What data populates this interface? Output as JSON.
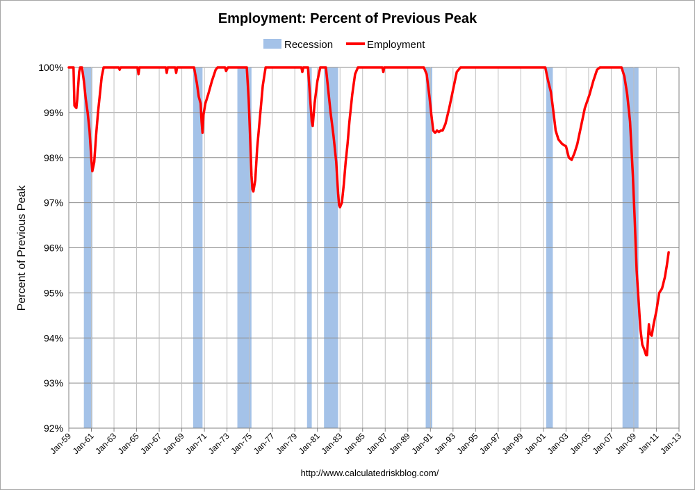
{
  "chart_data": {
    "type": "line",
    "title": "Employment: Percent of Previous Peak",
    "ylabel": "Percent of Previous Peak",
    "xlabel": "",
    "source": "http://www.calculatedriskblog.com/",
    "ylim": [
      92,
      100
    ],
    "y_ticks": [
      "92%",
      "93%",
      "94%",
      "95%",
      "96%",
      "97%",
      "98%",
      "99%",
      "100%"
    ],
    "x_ticks": [
      "Jan-59",
      "Jan-61",
      "Jan-63",
      "Jan-65",
      "Jan-67",
      "Jan-69",
      "Jan-71",
      "Jan-73",
      "Jan-75",
      "Jan-77",
      "Jan-79",
      "Jan-81",
      "Jan-83",
      "Jan-85",
      "Jan-87",
      "Jan-89",
      "Jan-91",
      "Jan-93",
      "Jan-95",
      "Jan-97",
      "Jan-99",
      "Jan-01",
      "Jan-03",
      "Jan-05",
      "Jan-07",
      "Jan-09",
      "Jan-11",
      "Jan-13"
    ],
    "grid": true,
    "legend_position": "top",
    "legend": [
      {
        "name": "Recession",
        "color": "#a4c2e8"
      },
      {
        "name": "Employment",
        "color": "#ff0000"
      }
    ],
    "recessions": [
      [
        "1960-05",
        "1961-02"
      ],
      [
        "1970-01",
        "1970-11"
      ],
      [
        "1973-12",
        "1975-03"
      ],
      [
        "1980-02",
        "1980-07"
      ],
      [
        "1981-08",
        "1982-11"
      ],
      [
        "1990-08",
        "1991-03"
      ],
      [
        "2001-04",
        "2001-11"
      ],
      [
        "2008-01",
        "2009-06"
      ]
    ],
    "series": [
      {
        "name": "Employment",
        "color": "#ff0000",
        "points": [
          [
            "1959-01",
            100
          ],
          [
            "1959-06",
            100
          ],
          [
            "1959-07",
            99.15
          ],
          [
            "1959-09",
            99.1
          ],
          [
            "1959-10",
            99.3
          ],
          [
            "1959-12",
            99.9
          ],
          [
            "1960-01",
            100
          ],
          [
            "1960-03",
            100
          ],
          [
            "1960-05",
            99.7
          ],
          [
            "1960-07",
            99.3
          ],
          [
            "1960-09",
            99.0
          ],
          [
            "1960-11",
            98.6
          ],
          [
            "1961-01",
            97.95
          ],
          [
            "1961-02",
            97.7
          ],
          [
            "1961-04",
            97.9
          ],
          [
            "1961-06",
            98.5
          ],
          [
            "1961-08",
            99.0
          ],
          [
            "1961-10",
            99.4
          ],
          [
            "1961-12",
            99.8
          ],
          [
            "1962-02",
            100
          ],
          [
            "1963-06",
            100
          ],
          [
            "1963-07",
            99.95
          ],
          [
            "1963-08",
            100
          ],
          [
            "1965-02",
            100
          ],
          [
            "1965-03",
            99.85
          ],
          [
            "1965-04",
            100
          ],
          [
            "1967-08",
            100
          ],
          [
            "1967-09",
            99.88
          ],
          [
            "1967-10",
            100
          ],
          [
            "1968-06",
            100
          ],
          [
            "1968-07",
            99.88
          ],
          [
            "1968-08",
            100
          ],
          [
            "1970-02",
            100
          ],
          [
            "1970-05",
            99.65
          ],
          [
            "1970-07",
            99.35
          ],
          [
            "1970-09",
            99.2
          ],
          [
            "1970-10",
            98.8
          ],
          [
            "1970-11",
            98.55
          ],
          [
            "1970-12",
            98.95
          ],
          [
            "1971-02",
            99.2
          ],
          [
            "1971-05",
            99.4
          ],
          [
            "1971-09",
            99.7
          ],
          [
            "1972-01",
            99.95
          ],
          [
            "1972-03",
            100
          ],
          [
            "1972-11",
            100
          ],
          [
            "1972-12",
            99.92
          ],
          [
            "1973-02",
            100
          ],
          [
            "1974-10",
            100
          ],
          [
            "1974-12",
            99.3
          ],
          [
            "1975-02",
            98.2
          ],
          [
            "1975-03",
            97.6
          ],
          [
            "1975-04",
            97.3
          ],
          [
            "1975-05",
            97.25
          ],
          [
            "1975-07",
            97.5
          ],
          [
            "1975-09",
            98.2
          ],
          [
            "1975-12",
            98.9
          ],
          [
            "1976-03",
            99.6
          ],
          [
            "1976-06",
            100
          ],
          [
            "1979-08",
            100
          ],
          [
            "1979-09",
            99.9
          ],
          [
            "1979-10",
            100
          ],
          [
            "1980-03",
            100
          ],
          [
            "1980-05",
            99.4
          ],
          [
            "1980-07",
            98.8
          ],
          [
            "1980-08",
            98.7
          ],
          [
            "1980-10",
            99.2
          ],
          [
            "1981-01",
            99.7
          ],
          [
            "1981-04",
            100
          ],
          [
            "1981-10",
            100
          ],
          [
            "1981-12",
            99.6
          ],
          [
            "1982-03",
            99.0
          ],
          [
            "1982-06",
            98.5
          ],
          [
            "1982-09",
            97.9
          ],
          [
            "1982-11",
            97.2
          ],
          [
            "1982-12",
            96.95
          ],
          [
            "1983-01",
            96.9
          ],
          [
            "1983-03",
            97.0
          ],
          [
            "1983-05",
            97.4
          ],
          [
            "1983-07",
            97.9
          ],
          [
            "1983-09",
            98.3
          ],
          [
            "1983-11",
            98.8
          ],
          [
            "1984-02",
            99.4
          ],
          [
            "1984-05",
            99.85
          ],
          [
            "1984-08",
            100
          ],
          [
            "1986-10",
            100
          ],
          [
            "1986-11",
            99.9
          ],
          [
            "1986-12",
            100
          ],
          [
            "1990-06",
            100
          ],
          [
            "1990-09",
            99.85
          ],
          [
            "1990-12",
            99.35
          ],
          [
            "1991-02",
            98.95
          ],
          [
            "1991-04",
            98.6
          ],
          [
            "1991-06",
            98.55
          ],
          [
            "1991-08",
            98.6
          ],
          [
            "1991-10",
            98.57
          ],
          [
            "1991-12",
            98.6
          ],
          [
            "1992-02",
            98.6
          ],
          [
            "1992-05",
            98.75
          ],
          [
            "1992-09",
            99.1
          ],
          [
            "1993-01",
            99.5
          ],
          [
            "1993-05",
            99.9
          ],
          [
            "1993-09",
            100
          ],
          [
            "2001-03",
            100
          ],
          [
            "2001-06",
            99.7
          ],
          [
            "2001-09",
            99.45
          ],
          [
            "2001-12",
            98.95
          ],
          [
            "2002-02",
            98.6
          ],
          [
            "2002-05",
            98.4
          ],
          [
            "2002-09",
            98.3
          ],
          [
            "2003-01",
            98.25
          ],
          [
            "2003-04",
            98.0
          ],
          [
            "2003-07",
            97.95
          ],
          [
            "2003-10",
            98.1
          ],
          [
            "2004-01",
            98.3
          ],
          [
            "2004-05",
            98.7
          ],
          [
            "2004-09",
            99.1
          ],
          [
            "2005-02",
            99.4
          ],
          [
            "2005-06",
            99.7
          ],
          [
            "2005-10",
            99.95
          ],
          [
            "2006-01",
            100
          ],
          [
            "2007-12",
            100
          ],
          [
            "2008-03",
            99.8
          ],
          [
            "2008-06",
            99.4
          ],
          [
            "2008-09",
            98.8
          ],
          [
            "2008-12",
            97.6
          ],
          [
            "2009-02",
            96.6
          ],
          [
            "2009-04",
            95.5
          ],
          [
            "2009-06",
            94.85
          ],
          [
            "2009-08",
            94.2
          ],
          [
            "2009-10",
            93.85
          ],
          [
            "2009-12",
            93.75
          ],
          [
            "2010-02",
            93.62
          ],
          [
            "2010-03",
            93.62
          ],
          [
            "2010-05",
            94.3
          ],
          [
            "2010-06",
            94.1
          ],
          [
            "2010-08",
            94.05
          ],
          [
            "2010-10",
            94.3
          ],
          [
            "2011-01",
            94.6
          ],
          [
            "2011-04",
            95.0
          ],
          [
            "2011-07",
            95.1
          ],
          [
            "2011-10",
            95.35
          ],
          [
            "2011-12",
            95.6
          ],
          [
            "2012-02",
            95.9
          ]
        ]
      }
    ]
  }
}
